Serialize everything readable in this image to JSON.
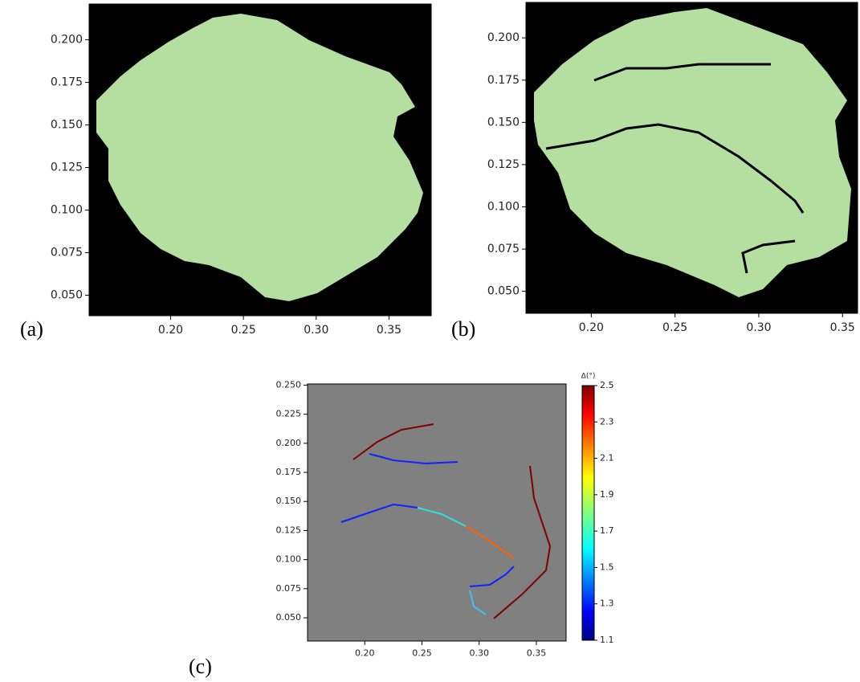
{
  "chart_data": [
    {
      "type": "image",
      "panel_label": "(a)",
      "xlim": [
        0.144,
        0.379
      ],
      "ylim": [
        0.038,
        0.221
      ],
      "xticks": [
        {
          "value": 0.2,
          "label": "0.20"
        },
        {
          "value": 0.25,
          "label": "0.25"
        },
        {
          "value": 0.3,
          "label": "0.30"
        },
        {
          "value": 0.35,
          "label": "0.35"
        }
      ],
      "yticks": [
        {
          "value": 0.05,
          "label": "0.050"
        },
        {
          "value": 0.075,
          "label": "0.075"
        },
        {
          "value": 0.1,
          "label": "0.100"
        },
        {
          "value": 0.125,
          "label": "0.125"
        },
        {
          "value": 0.15,
          "label": "0.150"
        },
        {
          "value": 0.175,
          "label": "0.175"
        },
        {
          "value": 0.2,
          "label": "0.200"
        }
      ]
    },
    {
      "type": "image",
      "panel_label": "(b)",
      "xlim": [
        0.161,
        0.359
      ],
      "ylim": [
        0.037,
        0.221
      ],
      "xticks": [
        {
          "value": 0.2,
          "label": "0.20"
        },
        {
          "value": 0.25,
          "label": "0.25"
        },
        {
          "value": 0.3,
          "label": "0.30"
        },
        {
          "value": 0.35,
          "label": "0.35"
        }
      ],
      "yticks": [
        {
          "value": 0.05,
          "label": "0.050"
        },
        {
          "value": 0.075,
          "label": "0.075"
        },
        {
          "value": 0.1,
          "label": "0.100"
        },
        {
          "value": 0.125,
          "label": "0.125"
        },
        {
          "value": 0.15,
          "label": "0.150"
        },
        {
          "value": 0.175,
          "label": "0.175"
        },
        {
          "value": 0.2,
          "label": "0.200"
        }
      ]
    },
    {
      "type": "image",
      "panel_label": "(c)",
      "xlim": [
        0.15,
        0.376
      ],
      "ylim": [
        0.03,
        0.251
      ],
      "xticks": [
        {
          "value": 0.2,
          "label": "0.20"
        },
        {
          "value": 0.25,
          "label": "0.25"
        },
        {
          "value": 0.3,
          "label": "0.30"
        },
        {
          "value": 0.35,
          "label": "0.35"
        }
      ],
      "yticks": [
        {
          "value": 0.05,
          "label": "0.050"
        },
        {
          "value": 0.075,
          "label": "0.075"
        },
        {
          "value": 0.1,
          "label": "0.100"
        },
        {
          "value": 0.125,
          "label": "0.125"
        },
        {
          "value": 0.15,
          "label": "0.150"
        },
        {
          "value": 0.175,
          "label": "0.175"
        },
        {
          "value": 0.2,
          "label": "0.200"
        },
        {
          "value": 0.225,
          "label": "0.225"
        },
        {
          "value": 0.25,
          "label": "0.250"
        }
      ],
      "colorbar": {
        "label": "Δ(°)",
        "lim": [
          1.1,
          2.5
        ],
        "ticks": [
          1.1,
          1.3,
          1.5,
          1.7,
          1.9,
          2.1,
          2.3,
          2.5
        ]
      }
    }
  ]
}
